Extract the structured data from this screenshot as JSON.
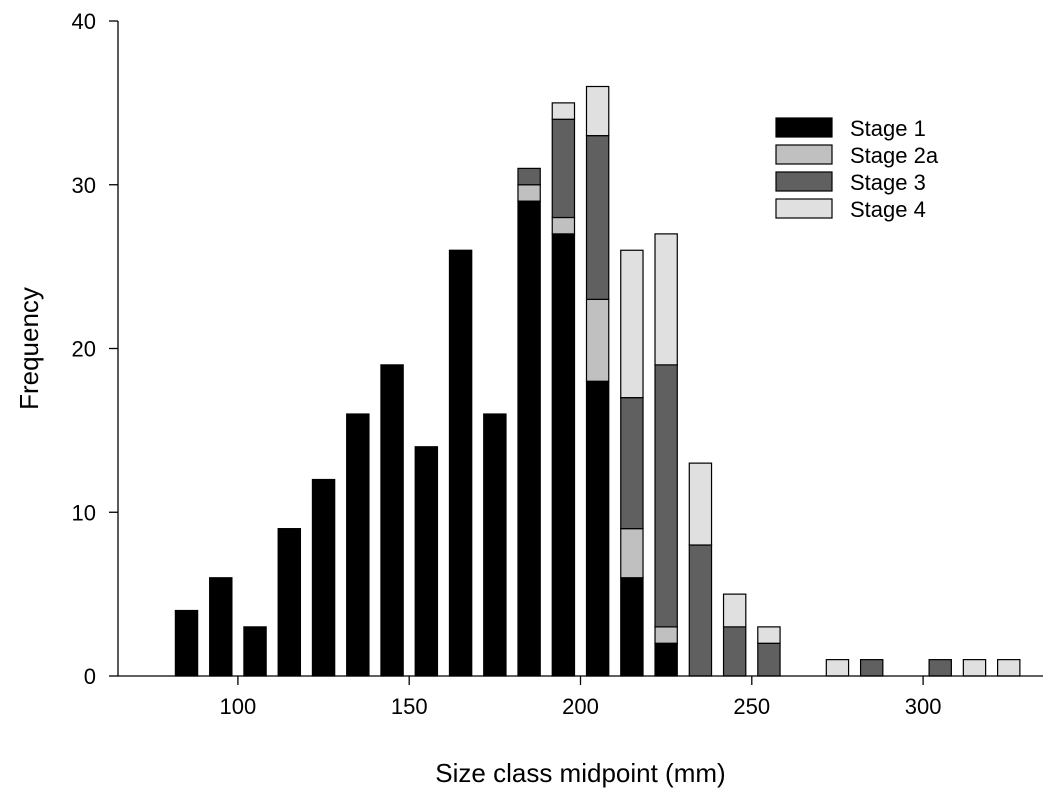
{
  "chart_data": {
    "type": "bar",
    "stacked": true,
    "xlabel": "Size class midpoint (mm)",
    "ylabel": "Frequency",
    "xlim": [
      65,
      335
    ],
    "ylim": [
      0,
      40
    ],
    "x_ticks": [
      100,
      150,
      200,
      250,
      300
    ],
    "y_ticks": [
      0,
      10,
      20,
      30,
      40
    ],
    "bar_width": 6.5,
    "legend_position": "top-right",
    "x": [
      85,
      95,
      105,
      115,
      125,
      135,
      145,
      155,
      165,
      175,
      185,
      195,
      205,
      215,
      225,
      235,
      245,
      255,
      275,
      285,
      305,
      315,
      325
    ],
    "series": [
      {
        "name": "Stage 1",
        "color": "#000000",
        "values": [
          4,
          6,
          3,
          9,
          12,
          16,
          19,
          14,
          26,
          16,
          29,
          27,
          18,
          6,
          2,
          0,
          0,
          0,
          0,
          0,
          0,
          0,
          0
        ]
      },
      {
        "name": "Stage 2a",
        "color": "#c0c0c0",
        "values": [
          0,
          0,
          0,
          0,
          0,
          0,
          0,
          0,
          0,
          0,
          1,
          1,
          5,
          3,
          1,
          0,
          0,
          0,
          0,
          0,
          0,
          0,
          0
        ]
      },
      {
        "name": "Stage 3",
        "color": "#606060",
        "values": [
          0,
          0,
          0,
          0,
          0,
          0,
          0,
          0,
          0,
          0,
          1,
          6,
          10,
          8,
          16,
          8,
          3,
          2,
          0,
          1,
          1,
          0,
          0
        ]
      },
      {
        "name": "Stage 4",
        "color": "#e0e0e0",
        "values": [
          0,
          0,
          0,
          0,
          0,
          0,
          0,
          0,
          0,
          0,
          0,
          1,
          3,
          9,
          8,
          5,
          2,
          1,
          1,
          0,
          0,
          1,
          1
        ]
      }
    ]
  }
}
